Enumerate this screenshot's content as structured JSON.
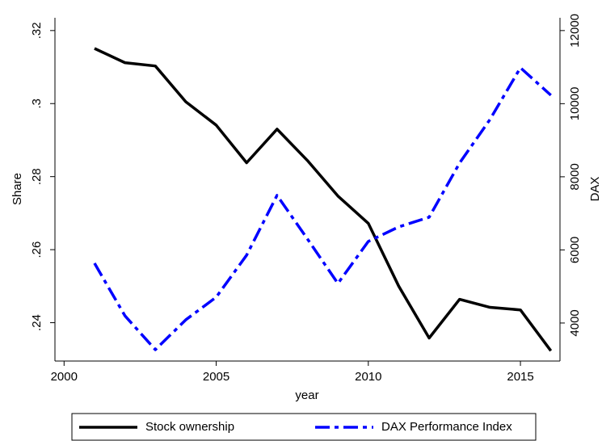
{
  "chart_data": {
    "type": "line",
    "x_label": "year",
    "y_label": "Share",
    "y2_label": "DAX",
    "x": [
      2001,
      2002,
      2003,
      2004,
      2005,
      2006,
      2007,
      2008,
      2009,
      2010,
      2011,
      2012,
      2013,
      2014,
      2015,
      2016
    ],
    "xlim": [
      1999.7,
      2016.3
    ],
    "xticks": [
      2000,
      2005,
      2010,
      2015
    ],
    "ylim": [
      0.2295,
      0.3235
    ],
    "yticks": [
      {
        "value": 0.24,
        "label": ".24"
      },
      {
        "value": 0.26,
        "label": ".26"
      },
      {
        "value": 0.28,
        "label": ".28"
      },
      {
        "value": 0.3,
        "label": ".3"
      },
      {
        "value": 0.32,
        "label": ".32"
      }
    ],
    "y2lim": [
      2960,
      12350
    ],
    "y2ticks": [
      4000,
      6000,
      8000,
      10000,
      12000
    ],
    "grid": false,
    "legend": "bottom",
    "series": [
      {
        "name": "Stock ownership",
        "color": "#000000",
        "dash": "solid",
        "values": [
          0.3151,
          0.3112,
          0.3103,
          0.3005,
          0.2941,
          0.2838,
          0.293,
          0.2844,
          0.2747,
          0.2672,
          0.25,
          0.2358,
          0.2464,
          0.2442,
          0.2435,
          0.2323
        ]
      },
      {
        "name": "DAX Performance Index",
        "color": "#0000ff",
        "dash": "dashdot",
        "axis": "y2",
        "values": [
          5635,
          4199,
          3270,
          4088,
          4707,
          5856,
          7492,
          6298,
          5083,
          6232,
          6630,
          6895,
          8376,
          9569,
          10983,
          10232
        ]
      }
    ]
  }
}
